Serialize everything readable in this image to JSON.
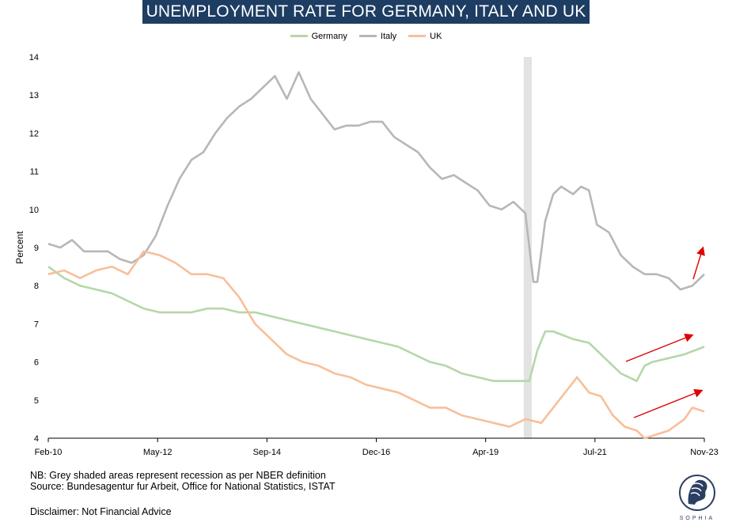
{
  "header": {
    "title": "UNEMPLOYMENT RATE FOR GERMANY, ITALY AND UK"
  },
  "footer": {
    "note": "NB: Grey shaded areas represent recession as per NBER definition",
    "source": "Source: Bundesagentur fur Arbeit, Office for National Statistics, ISTAT",
    "disclaimer": "Disclaimer: Not Financial Advice"
  },
  "logo": {
    "text": "SOPHIA",
    "icon": "sophia-logo-icon"
  },
  "chart_data": {
    "type": "line",
    "title": "UNEMPLOYMENT RATE FOR GERMANY, ITALY AND UK",
    "xlabel": "",
    "ylabel": "Percent",
    "xlim": [
      "2010-02",
      "2023-11"
    ],
    "ylim": [
      4,
      14
    ],
    "x_ticks": [
      "Feb-10",
      "May-12",
      "Sep-14",
      "Dec-16",
      "Apr-19",
      "Jul-21",
      "Nov-23"
    ],
    "y_ticks": [
      4,
      5,
      6,
      7,
      8,
      9,
      10,
      11,
      12,
      13,
      14
    ],
    "grid": false,
    "legend_position": "top-center",
    "recession_shading": [
      [
        "2020-02",
        "2020-04"
      ]
    ],
    "series": [
      {
        "name": "Germany",
        "color": "#b6d7a8",
        "points": [
          [
            "2010-02",
            8.5
          ],
          [
            "2010-06",
            8.2
          ],
          [
            "2010-10",
            8.0
          ],
          [
            "2011-02",
            7.9
          ],
          [
            "2011-06",
            7.8
          ],
          [
            "2011-10",
            7.6
          ],
          [
            "2012-02",
            7.4
          ],
          [
            "2012-06",
            7.3
          ],
          [
            "2012-10",
            7.3
          ],
          [
            "2013-02",
            7.3
          ],
          [
            "2013-06",
            7.4
          ],
          [
            "2013-10",
            7.4
          ],
          [
            "2014-02",
            7.3
          ],
          [
            "2014-06",
            7.3
          ],
          [
            "2014-10",
            7.2
          ],
          [
            "2015-02",
            7.1
          ],
          [
            "2015-06",
            7.0
          ],
          [
            "2015-10",
            6.9
          ],
          [
            "2016-02",
            6.8
          ],
          [
            "2016-06",
            6.7
          ],
          [
            "2016-10",
            6.6
          ],
          [
            "2017-02",
            6.5
          ],
          [
            "2017-06",
            6.4
          ],
          [
            "2017-10",
            6.2
          ],
          [
            "2018-02",
            6.0
          ],
          [
            "2018-06",
            5.9
          ],
          [
            "2018-10",
            5.7
          ],
          [
            "2019-02",
            5.6
          ],
          [
            "2019-06",
            5.5
          ],
          [
            "2019-10",
            5.5
          ],
          [
            "2020-02",
            5.5
          ],
          [
            "2020-03",
            5.5
          ],
          [
            "2020-05",
            6.3
          ],
          [
            "2020-07",
            6.8
          ],
          [
            "2020-09",
            6.8
          ],
          [
            "2021-02",
            6.6
          ],
          [
            "2021-06",
            6.5
          ],
          [
            "2021-10",
            6.1
          ],
          [
            "2022-02",
            5.7
          ],
          [
            "2022-06",
            5.5
          ],
          [
            "2022-08",
            5.9
          ],
          [
            "2022-10",
            6.0
          ],
          [
            "2023-02",
            6.1
          ],
          [
            "2023-06",
            6.2
          ],
          [
            "2023-11",
            6.4
          ]
        ]
      },
      {
        "name": "Italy",
        "color": "#b7b7b7",
        "points": [
          [
            "2010-02",
            9.1
          ],
          [
            "2010-05",
            9.0
          ],
          [
            "2010-08",
            9.2
          ],
          [
            "2010-11",
            8.9
          ],
          [
            "2011-02",
            8.9
          ],
          [
            "2011-05",
            8.9
          ],
          [
            "2011-08",
            8.7
          ],
          [
            "2011-11",
            8.6
          ],
          [
            "2012-02",
            8.8
          ],
          [
            "2012-05",
            9.3
          ],
          [
            "2012-08",
            10.1
          ],
          [
            "2012-11",
            10.8
          ],
          [
            "2013-02",
            11.3
          ],
          [
            "2013-05",
            11.5
          ],
          [
            "2013-08",
            12.0
          ],
          [
            "2013-11",
            12.4
          ],
          [
            "2014-02",
            12.7
          ],
          [
            "2014-05",
            12.9
          ],
          [
            "2014-08",
            13.2
          ],
          [
            "2014-11",
            13.5
          ],
          [
            "2015-02",
            12.9
          ],
          [
            "2015-05",
            13.6
          ],
          [
            "2015-08",
            12.9
          ],
          [
            "2015-11",
            12.5
          ],
          [
            "2016-02",
            12.1
          ],
          [
            "2016-05",
            12.2
          ],
          [
            "2016-08",
            12.2
          ],
          [
            "2016-11",
            12.3
          ],
          [
            "2017-02",
            12.3
          ],
          [
            "2017-05",
            11.9
          ],
          [
            "2017-08",
            11.7
          ],
          [
            "2017-11",
            11.5
          ],
          [
            "2018-02",
            11.1
          ],
          [
            "2018-05",
            10.8
          ],
          [
            "2018-08",
            10.9
          ],
          [
            "2018-11",
            10.7
          ],
          [
            "2019-02",
            10.5
          ],
          [
            "2019-05",
            10.1
          ],
          [
            "2019-08",
            10.0
          ],
          [
            "2019-11",
            10.2
          ],
          [
            "2020-02",
            9.9
          ],
          [
            "2020-04",
            8.1
          ],
          [
            "2020-05",
            8.1
          ],
          [
            "2020-07",
            9.7
          ],
          [
            "2020-09",
            10.4
          ],
          [
            "2020-11",
            10.6
          ],
          [
            "2021-02",
            10.4
          ],
          [
            "2021-04",
            10.6
          ],
          [
            "2021-06",
            10.5
          ],
          [
            "2021-08",
            9.6
          ],
          [
            "2021-11",
            9.4
          ],
          [
            "2022-02",
            8.8
          ],
          [
            "2022-05",
            8.5
          ],
          [
            "2022-08",
            8.3
          ],
          [
            "2022-11",
            8.3
          ],
          [
            "2023-02",
            8.2
          ],
          [
            "2023-05",
            7.9
          ],
          [
            "2023-08",
            8.0
          ],
          [
            "2023-11",
            8.3
          ]
        ]
      },
      {
        "name": "UK",
        "color": "#f8bf9a",
        "points": [
          [
            "2010-02",
            8.3
          ],
          [
            "2010-06",
            8.4
          ],
          [
            "2010-10",
            8.2
          ],
          [
            "2011-02",
            8.4
          ],
          [
            "2011-06",
            8.5
          ],
          [
            "2011-10",
            8.3
          ],
          [
            "2012-02",
            8.9
          ],
          [
            "2012-06",
            8.8
          ],
          [
            "2012-10",
            8.6
          ],
          [
            "2013-02",
            8.3
          ],
          [
            "2013-06",
            8.3
          ],
          [
            "2013-10",
            8.2
          ],
          [
            "2014-02",
            7.7
          ],
          [
            "2014-06",
            7.0
          ],
          [
            "2014-10",
            6.6
          ],
          [
            "2015-02",
            6.2
          ],
          [
            "2015-06",
            6.0
          ],
          [
            "2015-10",
            5.9
          ],
          [
            "2016-02",
            5.7
          ],
          [
            "2016-06",
            5.6
          ],
          [
            "2016-10",
            5.4
          ],
          [
            "2017-02",
            5.3
          ],
          [
            "2017-06",
            5.2
          ],
          [
            "2017-10",
            5.0
          ],
          [
            "2018-02",
            4.8
          ],
          [
            "2018-06",
            4.8
          ],
          [
            "2018-10",
            4.6
          ],
          [
            "2019-02",
            4.5
          ],
          [
            "2019-06",
            4.4
          ],
          [
            "2019-10",
            4.3
          ],
          [
            "2020-02",
            4.5
          ],
          [
            "2020-06",
            4.4
          ],
          [
            "2020-09",
            4.8
          ],
          [
            "2020-12",
            5.2
          ],
          [
            "2021-03",
            5.6
          ],
          [
            "2021-06",
            5.2
          ],
          [
            "2021-09",
            5.1
          ],
          [
            "2021-12",
            4.6
          ],
          [
            "2022-03",
            4.3
          ],
          [
            "2022-06",
            4.2
          ],
          [
            "2022-08",
            4.0
          ],
          [
            "2022-11",
            4.1
          ],
          [
            "2023-02",
            4.2
          ],
          [
            "2023-06",
            4.5
          ],
          [
            "2023-08",
            4.8
          ],
          [
            "2023-11",
            4.7
          ]
        ]
      }
    ],
    "annotations": [
      {
        "type": "arrow",
        "color": "#e00000",
        "note": "upward trend arrow beside Italy"
      },
      {
        "type": "arrow",
        "color": "#e00000",
        "note": "upward trend arrow beside Germany"
      },
      {
        "type": "arrow",
        "color": "#e00000",
        "note": "upward trend arrow beside UK"
      }
    ]
  }
}
